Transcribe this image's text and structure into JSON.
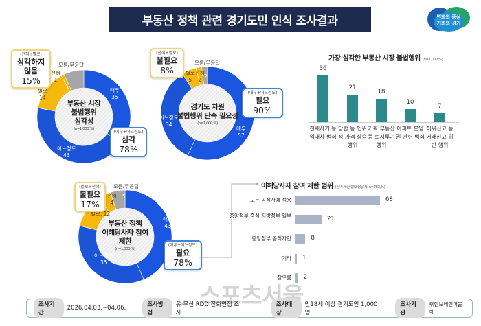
{
  "title": "부동산 정책 관련 경기도민 인식 조사결과",
  "logo": {
    "line1": "변화의 중심",
    "line2": "기회의 경기"
  },
  "colors": {
    "very": "#1a56e0",
    "some": "#1b54d6",
    "notmuch": "#f6b80c",
    "never": "#f3b60a",
    "dk": "#a6a6a6",
    "bar1": "#2d8a8c",
    "bar2": "#aab4c6",
    "navy": "#1d2b4f"
  },
  "donuts": [
    {
      "title1": "부동산 시장",
      "title2": "불법행위",
      "title3": "심각성",
      "n": "(n=1,000,%)",
      "segments": [
        {
          "label": "매우",
          "value": 35
        },
        {
          "label": "어느정도",
          "value": 43
        },
        {
          "label": "별로",
          "value": 14
        },
        {
          "label": "전혀",
          "value": 1
        },
        {
          "label": "모름/무응답",
          "value": 7
        }
      ],
      "neg": {
        "sub": "(전혀+별로)",
        "main": "심각하지 않음",
        "pct": "15%"
      },
      "pos": {
        "sub": "(매우+어느정도)",
        "main": "심각",
        "pct": "78%"
      }
    },
    {
      "title1": "경기도 차원",
      "title2": "불법행위 단속 필요성",
      "title3": "",
      "n": "(n=1,000,%)",
      "segments": [
        {
          "label": "매우",
          "value": 57
        },
        {
          "label": "어느정도",
          "value": 34
        },
        {
          "label": "별로",
          "value": 5
        },
        {
          "label": "전혀",
          "value": 2
        },
        {
          "label": "모름/무응답",
          "value": 2
        }
      ],
      "neg": {
        "sub": "(전혀+별로)",
        "main": "불필요",
        "pct": "8%"
      },
      "pos": {
        "sub": "(매우+어느정도)",
        "main": "필요",
        "pct": "90%"
      }
    },
    {
      "title1": "부동산 정책",
      "title2": "이해당사자 참여",
      "title3": "제한",
      "n": "(n=1,000,%)",
      "segments": [
        {
          "label": "매우",
          "value": 43
        },
        {
          "label": "어느정도",
          "value": 35
        },
        {
          "label": "별로",
          "value": 12
        },
        {
          "label": "전혀",
          "value": 4
        },
        {
          "label": "모름/무응답",
          "value": 5
        }
      ],
      "neg": {
        "sub": "(별로+전혀)",
        "main": "불필요",
        "pct": "17%"
      },
      "pos": {
        "sub": "(매우+어느정도)",
        "main": "필요",
        "pct": "78%"
      }
    }
  ],
  "chart_data": [
    {
      "type": "bar",
      "title": "가장 심각한 부동산 시장 불법행위",
      "note": "(n=1,000,%)",
      "categories": [
        "전세사기 등 임대차 범죄",
        "담합 등 인위적 가격 상승행위",
        "기획 부동산 등 토지투기 행위",
        "아파트 분양권 관련 범죄",
        "허위신고 등 거래신고 위반 행위"
      ],
      "values": [
        36,
        21,
        18,
        10,
        7
      ],
      "ylim": [
        0,
        36
      ]
    },
    {
      "type": "bar",
      "orientation": "horizontal",
      "title": "이해당사자 참여 제한 범위",
      "note": "(참여 제한 필요 응답자, n=783,%)",
      "categories": [
        "모든 공직자에 적용",
        "중앙정부 중심 지방정부 일부",
        "중앙정부 공직자만",
        "기타",
        "잘모름"
      ],
      "values": [
        68,
        21,
        8,
        1,
        2
      ],
      "xlim": [
        0,
        68
      ]
    }
  ],
  "footer": [
    {
      "tag": "조사기간",
      "value": "2026.04.03.~04.06."
    },
    {
      "tag": "조사방법",
      "value": "유·무선 RDD 전화면접 조사"
    },
    {
      "tag": "조사대상",
      "value": "만18세 이상 경기도민 1,000명"
    },
    {
      "tag": "조사기관",
      "value": "㈜엠브레인퍼블릭"
    }
  ],
  "watermark": "스포츠서울"
}
